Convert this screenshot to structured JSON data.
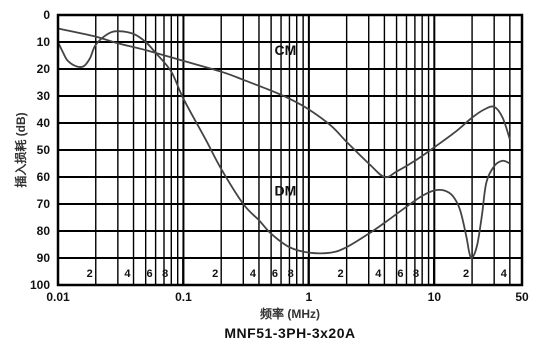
{
  "chart_data": {
    "type": "line",
    "title": "MNF51-3PH-3x20A",
    "xlabel": "频率 (MHz)",
    "ylabel": "插入损耗 (dB)",
    "xscale": "log",
    "xlim": [
      0.01,
      50
    ],
    "ylim": [
      0,
      100
    ],
    "y_inverted": true,
    "grid": true,
    "x_major_ticks": [
      {
        "value": 0.01,
        "label": "0.01"
      },
      {
        "value": 0.1,
        "label": "0.1"
      },
      {
        "value": 1,
        "label": "1"
      },
      {
        "value": 10,
        "label": "10"
      },
      {
        "value": 50,
        "label": "50"
      }
    ],
    "x_minor_labels": [
      {
        "value": 0.02,
        "label": "2"
      },
      {
        "value": 0.04,
        "label": "4"
      },
      {
        "value": 0.06,
        "label": "6"
      },
      {
        "value": 0.08,
        "label": "8"
      },
      {
        "value": 0.2,
        "label": "2"
      },
      {
        "value": 0.4,
        "label": "4"
      },
      {
        "value": 0.6,
        "label": "6"
      },
      {
        "value": 0.8,
        "label": "8"
      },
      {
        "value": 2,
        "label": "2"
      },
      {
        "value": 4,
        "label": "4"
      },
      {
        "value": 6,
        "label": "6"
      },
      {
        "value": 8,
        "label": "8"
      },
      {
        "value": 20,
        "label": "2"
      },
      {
        "value": 40,
        "label": "4"
      }
    ],
    "x_minor_lines": [
      0.02,
      0.03,
      0.04,
      0.05,
      0.06,
      0.07,
      0.08,
      0.09,
      0.2,
      0.3,
      0.4,
      0.5,
      0.6,
      0.7,
      0.8,
      0.9,
      2,
      3,
      4,
      5,
      6,
      7,
      8,
      9,
      20,
      30,
      40
    ],
    "x_label_bars": [
      0.09,
      0.9,
      9
    ],
    "y_ticks": [
      0,
      10,
      20,
      30,
      40,
      50,
      60,
      70,
      80,
      90,
      100
    ],
    "series": [
      {
        "name": "CM",
        "label_at": {
          "x": 0.65,
          "y": 13
        },
        "points": [
          [
            0.01,
            5
          ],
          [
            0.02,
            8
          ],
          [
            0.03,
            10.5
          ],
          [
            0.05,
            13
          ],
          [
            0.1,
            17
          ],
          [
            0.2,
            21
          ],
          [
            0.3,
            24
          ],
          [
            0.5,
            28
          ],
          [
            0.7,
            31
          ],
          [
            1,
            35
          ],
          [
            1.5,
            41
          ],
          [
            2,
            47
          ],
          [
            3,
            55
          ],
          [
            4,
            60
          ],
          [
            5,
            58
          ],
          [
            7,
            54
          ],
          [
            10,
            49
          ],
          [
            15,
            43
          ],
          [
            20,
            38
          ],
          [
            25,
            35
          ],
          [
            30,
            34
          ],
          [
            35,
            38
          ],
          [
            40,
            46
          ]
        ]
      },
      {
        "name": "DM",
        "label_at": {
          "x": 0.65,
          "y": 65
        },
        "points": [
          [
            0.01,
            10
          ],
          [
            0.011,
            14
          ],
          [
            0.012,
            17
          ],
          [
            0.014,
            19
          ],
          [
            0.016,
            19
          ],
          [
            0.018,
            16
          ],
          [
            0.02,
            11
          ],
          [
            0.025,
            7
          ],
          [
            0.03,
            6
          ],
          [
            0.04,
            7
          ],
          [
            0.05,
            10
          ],
          [
            0.06,
            14
          ],
          [
            0.08,
            21
          ],
          [
            0.1,
            31
          ],
          [
            0.15,
            46
          ],
          [
            0.2,
            57
          ],
          [
            0.3,
            70
          ],
          [
            0.4,
            76
          ],
          [
            0.5,
            81
          ],
          [
            0.7,
            86
          ],
          [
            1,
            88
          ],
          [
            1.5,
            88
          ],
          [
            2,
            86
          ],
          [
            3,
            81
          ],
          [
            4,
            77
          ],
          [
            6,
            71
          ],
          [
            8,
            67
          ],
          [
            10,
            65
          ],
          [
            12,
            65
          ],
          [
            14,
            67
          ],
          [
            16,
            72
          ],
          [
            18,
            82
          ],
          [
            19,
            88
          ],
          [
            20,
            90
          ],
          [
            22,
            85
          ],
          [
            24,
            74
          ],
          [
            26,
            62
          ],
          [
            30,
            56
          ],
          [
            35,
            54
          ],
          [
            40,
            55
          ]
        ]
      }
    ]
  }
}
